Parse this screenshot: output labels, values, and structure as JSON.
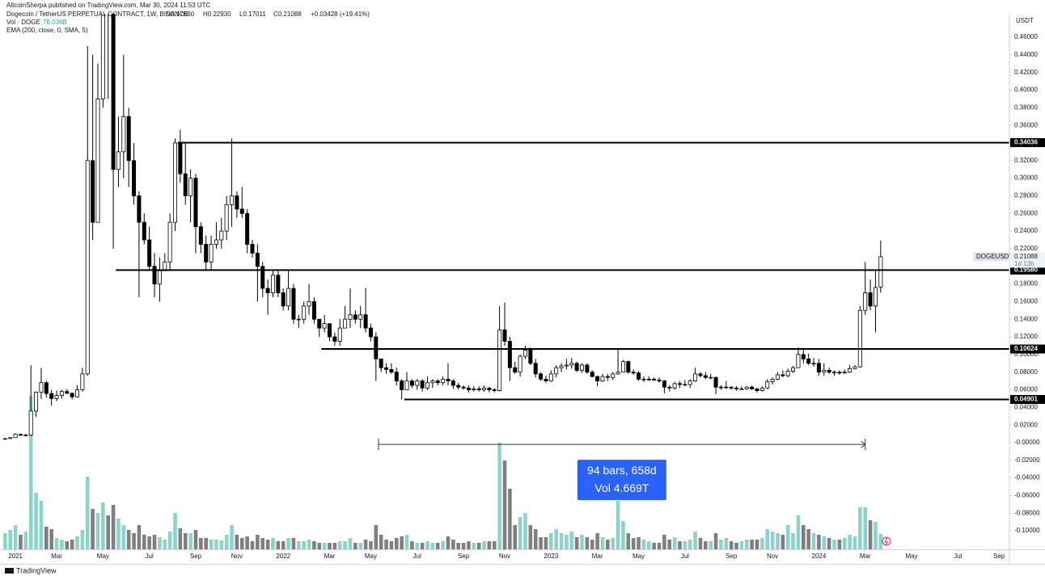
{
  "header": {
    "publisher": "AltcoinSherpa published on TradingView.com, Mar 30, 2024 11:53 UTC",
    "symbol": "Dogecoin / TetherUS PERPETUAL CONTRACT, 1W, BINANCE",
    "ohlc": [
      "O0.17660",
      "H0.22930",
      "L0.17011",
      "C0.21088",
      "+0.03428 (+19.41%)"
    ],
    "volume": "Vol · DOGE",
    "volume_value": "76.036B",
    "ema": "EMA (200, close, 0, SMA, 5)"
  },
  "chart_data": {
    "type": "candlestick",
    "currency": "USDT",
    "up_color": "#ffffff",
    "down_color": "#000000",
    "grid": false,
    "candles": [
      [
        0.0045,
        0.0049,
        0.0044,
        0.0046
      ],
      [
        0.0046,
        0.0058,
        0.0044,
        0.0057
      ],
      [
        0.0057,
        0.0105,
        0.0053,
        0.0095
      ],
      [
        0.0095,
        0.0098,
        0.0078,
        0.0085
      ],
      [
        0.0085,
        0.0099,
        0.0072,
        0.0086
      ],
      [
        0.0086,
        0.0876,
        0.0076,
        0.0358
      ],
      [
        0.0358,
        0.058,
        0.0291,
        0.0572
      ],
      [
        0.0572,
        0.0847,
        0.0495,
        0.0681
      ],
      [
        0.0681,
        0.07,
        0.051,
        0.0557
      ],
      [
        0.0557,
        0.0599,
        0.042,
        0.05
      ],
      [
        0.05,
        0.059,
        0.047,
        0.0535
      ],
      [
        0.0535,
        0.06,
        0.05,
        0.058
      ],
      [
        0.058,
        0.061,
        0.055,
        0.056
      ],
      [
        0.056,
        0.057,
        0.049,
        0.052
      ],
      [
        0.052,
        0.065,
        0.051,
        0.06
      ],
      [
        0.06,
        0.085,
        0.058,
        0.078
      ],
      [
        0.078,
        0.45,
        0.076,
        0.32
      ],
      [
        0.32,
        0.44,
        0.23,
        0.25
      ],
      [
        0.25,
        0.43,
        0.25,
        0.39
      ],
      [
        0.39,
        0.74,
        0.38,
        0.51
      ],
      [
        0.51,
        0.56,
        0.39,
        0.49
      ],
      [
        0.49,
        0.51,
        0.22,
        0.31
      ],
      [
        0.31,
        0.37,
        0.29,
        0.33
      ],
      [
        0.33,
        0.44,
        0.3,
        0.37
      ],
      [
        0.37,
        0.38,
        0.29,
        0.32
      ],
      [
        0.32,
        0.34,
        0.27,
        0.28
      ],
      [
        0.28,
        0.285,
        0.165,
        0.25
      ],
      [
        0.25,
        0.26,
        0.225,
        0.23
      ],
      [
        0.23,
        0.245,
        0.195,
        0.2
      ],
      [
        0.2,
        0.215,
        0.165,
        0.18
      ],
      [
        0.18,
        0.21,
        0.16,
        0.195
      ],
      [
        0.195,
        0.215,
        0.195,
        0.205
      ],
      [
        0.205,
        0.26,
        0.195,
        0.25
      ],
      [
        0.25,
        0.345,
        0.24,
        0.34
      ],
      [
        0.34,
        0.355,
        0.295,
        0.305
      ],
      [
        0.305,
        0.34,
        0.27,
        0.28
      ],
      [
        0.28,
        0.31,
        0.25,
        0.3
      ],
      [
        0.3,
        0.305,
        0.215,
        0.245
      ],
      [
        0.245,
        0.25,
        0.215,
        0.225
      ],
      [
        0.225,
        0.235,
        0.195,
        0.205
      ],
      [
        0.205,
        0.235,
        0.195,
        0.225
      ],
      [
        0.225,
        0.25,
        0.22,
        0.23
      ],
      [
        0.23,
        0.255,
        0.22,
        0.24
      ],
      [
        0.24,
        0.28,
        0.23,
        0.27
      ],
      [
        0.27,
        0.345,
        0.245,
        0.28
      ],
      [
        0.28,
        0.285,
        0.255,
        0.265
      ],
      [
        0.265,
        0.29,
        0.255,
        0.26
      ],
      [
        0.26,
        0.265,
        0.215,
        0.225
      ],
      [
        0.225,
        0.23,
        0.21,
        0.215
      ],
      [
        0.215,
        0.225,
        0.16,
        0.2
      ],
      [
        0.2,
        0.205,
        0.165,
        0.175
      ],
      [
        0.175,
        0.185,
        0.145,
        0.17
      ],
      [
        0.17,
        0.195,
        0.165,
        0.19
      ],
      [
        0.19,
        0.195,
        0.165,
        0.17
      ],
      [
        0.17,
        0.175,
        0.15,
        0.155
      ],
      [
        0.155,
        0.195,
        0.15,
        0.175
      ],
      [
        0.175,
        0.18,
        0.135,
        0.14
      ],
      [
        0.14,
        0.145,
        0.13,
        0.14
      ],
      [
        0.14,
        0.16,
        0.135,
        0.155
      ],
      [
        0.155,
        0.18,
        0.145,
        0.16
      ],
      [
        0.16,
        0.165,
        0.135,
        0.14
      ],
      [
        0.14,
        0.14,
        0.12,
        0.13
      ],
      [
        0.13,
        0.145,
        0.125,
        0.135
      ],
      [
        0.135,
        0.135,
        0.115,
        0.12
      ],
      [
        0.12,
        0.125,
        0.11,
        0.115
      ],
      [
        0.115,
        0.14,
        0.11,
        0.13
      ],
      [
        0.13,
        0.155,
        0.13,
        0.14
      ],
      [
        0.14,
        0.175,
        0.13,
        0.145
      ],
      [
        0.145,
        0.15,
        0.135,
        0.14
      ],
      [
        0.14,
        0.155,
        0.13,
        0.145
      ],
      [
        0.145,
        0.175,
        0.125,
        0.13
      ],
      [
        0.13,
        0.135,
        0.115,
        0.12
      ],
      [
        0.12,
        0.125,
        0.07,
        0.095
      ],
      [
        0.095,
        0.095,
        0.08,
        0.085
      ],
      [
        0.085,
        0.09,
        0.078,
        0.083
      ],
      [
        0.083,
        0.09,
        0.078,
        0.08
      ],
      [
        0.08,
        0.085,
        0.065,
        0.07
      ],
      [
        0.07,
        0.072,
        0.049,
        0.06
      ],
      [
        0.06,
        0.08,
        0.06,
        0.07
      ],
      [
        0.07,
        0.072,
        0.062,
        0.065
      ],
      [
        0.065,
        0.072,
        0.06,
        0.07
      ],
      [
        0.07,
        0.072,
        0.058,
        0.062
      ],
      [
        0.062,
        0.075,
        0.06,
        0.068
      ],
      [
        0.068,
        0.072,
        0.062,
        0.07
      ],
      [
        0.07,
        0.072,
        0.065,
        0.068
      ],
      [
        0.068,
        0.075,
        0.065,
        0.072
      ],
      [
        0.072,
        0.09,
        0.065,
        0.07
      ],
      [
        0.07,
        0.072,
        0.061,
        0.065
      ],
      [
        0.065,
        0.068,
        0.06,
        0.063
      ],
      [
        0.063,
        0.065,
        0.06,
        0.062
      ],
      [
        0.062,
        0.065,
        0.057,
        0.06
      ],
      [
        0.06,
        0.064,
        0.058,
        0.061
      ],
      [
        0.061,
        0.064,
        0.058,
        0.06
      ],
      [
        0.06,
        0.065,
        0.058,
        0.062
      ],
      [
        0.062,
        0.063,
        0.057,
        0.06
      ],
      [
        0.06,
        0.062,
        0.057,
        0.059
      ],
      [
        0.059,
        0.155,
        0.058,
        0.128
      ],
      [
        0.128,
        0.159,
        0.11,
        0.115
      ],
      [
        0.115,
        0.12,
        0.07,
        0.085
      ],
      [
        0.085,
        0.092,
        0.078,
        0.08
      ],
      [
        0.08,
        0.1,
        0.075,
        0.098
      ],
      [
        0.098,
        0.11,
        0.095,
        0.105
      ],
      [
        0.105,
        0.108,
        0.088,
        0.09
      ],
      [
        0.09,
        0.095,
        0.074,
        0.078
      ],
      [
        0.078,
        0.08,
        0.07,
        0.072
      ],
      [
        0.072,
        0.076,
        0.068,
        0.07
      ],
      [
        0.07,
        0.082,
        0.069,
        0.078
      ],
      [
        0.078,
        0.088,
        0.074,
        0.085
      ],
      [
        0.085,
        0.09,
        0.08,
        0.087
      ],
      [
        0.087,
        0.095,
        0.083,
        0.088
      ],
      [
        0.088,
        0.096,
        0.084,
        0.09
      ],
      [
        0.09,
        0.092,
        0.08,
        0.082
      ],
      [
        0.082,
        0.09,
        0.079,
        0.088
      ],
      [
        0.088,
        0.09,
        0.078,
        0.08
      ],
      [
        0.08,
        0.082,
        0.074,
        0.075
      ],
      [
        0.075,
        0.076,
        0.064,
        0.07
      ],
      [
        0.07,
        0.078,
        0.069,
        0.075
      ],
      [
        0.075,
        0.078,
        0.07,
        0.074
      ],
      [
        0.074,
        0.08,
        0.071,
        0.078
      ],
      [
        0.078,
        0.106,
        0.077,
        0.08
      ],
      [
        0.08,
        0.094,
        0.08,
        0.092
      ],
      [
        0.092,
        0.093,
        0.078,
        0.08
      ],
      [
        0.08,
        0.083,
        0.077,
        0.079
      ],
      [
        0.079,
        0.081,
        0.07,
        0.072
      ],
      [
        0.072,
        0.075,
        0.069,
        0.072
      ],
      [
        0.072,
        0.075,
        0.07,
        0.072
      ],
      [
        0.072,
        0.074,
        0.07,
        0.071
      ],
      [
        0.071,
        0.074,
        0.068,
        0.07
      ],
      [
        0.07,
        0.071,
        0.056,
        0.063
      ],
      [
        0.063,
        0.065,
        0.058,
        0.062
      ],
      [
        0.062,
        0.069,
        0.06,
        0.067
      ],
      [
        0.067,
        0.07,
        0.062,
        0.066
      ],
      [
        0.066,
        0.071,
        0.064,
        0.066
      ],
      [
        0.066,
        0.072,
        0.062,
        0.07
      ],
      [
        0.07,
        0.085,
        0.069,
        0.078
      ],
      [
        0.078,
        0.08,
        0.074,
        0.076
      ],
      [
        0.076,
        0.08,
        0.072,
        0.074
      ],
      [
        0.074,
        0.078,
        0.072,
        0.074
      ],
      [
        0.074,
        0.075,
        0.055,
        0.063
      ],
      [
        0.063,
        0.065,
        0.06,
        0.063
      ],
      [
        0.063,
        0.07,
        0.061,
        0.063
      ],
      [
        0.063,
        0.064,
        0.06,
        0.062
      ],
      [
        0.062,
        0.064,
        0.059,
        0.061
      ],
      [
        0.061,
        0.064,
        0.06,
        0.061
      ],
      [
        0.061,
        0.064,
        0.06,
        0.063
      ],
      [
        0.063,
        0.065,
        0.06,
        0.061
      ],
      [
        0.061,
        0.062,
        0.057,
        0.059
      ],
      [
        0.059,
        0.064,
        0.058,
        0.062
      ],
      [
        0.062,
        0.072,
        0.061,
        0.069
      ],
      [
        0.069,
        0.074,
        0.066,
        0.072
      ],
      [
        0.072,
        0.08,
        0.071,
        0.077
      ],
      [
        0.077,
        0.082,
        0.074,
        0.076
      ],
      [
        0.076,
        0.084,
        0.074,
        0.081
      ],
      [
        0.081,
        0.087,
        0.079,
        0.085
      ],
      [
        0.085,
        0.108,
        0.085,
        0.1
      ],
      [
        0.1,
        0.106,
        0.09,
        0.095
      ],
      [
        0.095,
        0.101,
        0.088,
        0.09
      ],
      [
        0.09,
        0.096,
        0.086,
        0.09
      ],
      [
        0.09,
        0.095,
        0.076,
        0.08
      ],
      [
        0.08,
        0.09,
        0.076,
        0.082
      ],
      [
        0.082,
        0.085,
        0.078,
        0.08
      ],
      [
        0.08,
        0.082,
        0.076,
        0.08
      ],
      [
        0.08,
        0.082,
        0.077,
        0.079
      ],
      [
        0.079,
        0.083,
        0.078,
        0.08
      ],
      [
        0.08,
        0.088,
        0.079,
        0.084
      ],
      [
        0.084,
        0.088,
        0.083,
        0.086
      ],
      [
        0.086,
        0.155,
        0.085,
        0.15
      ],
      [
        0.15,
        0.205,
        0.145,
        0.17
      ],
      [
        0.17,
        0.185,
        0.15,
        0.155
      ],
      [
        0.155,
        0.195,
        0.125,
        0.176
      ],
      [
        0.1766,
        0.2293,
        0.17011,
        0.21088
      ]
    ],
    "volume": {
      "up_color": "#8dd3cb",
      "down_color": "#7f7f7f",
      "values": [
        80,
        96,
        120,
        72,
        88,
        760,
        280,
        240,
        112,
        100,
        56,
        48,
        40,
        48,
        64,
        96,
        360,
        200,
        180,
        232,
        168,
        220,
        152,
        120,
        96,
        80,
        120,
        72,
        64,
        72,
        60,
        48,
        88,
        180,
        104,
        80,
        80,
        96,
        56,
        56,
        48,
        48,
        44,
        72,
        120,
        72,
        56,
        64,
        40,
        72,
        56,
        48,
        56,
        40,
        40,
        56,
        56,
        40,
        40,
        48,
        40,
        32,
        32,
        32,
        32,
        40,
        40,
        56,
        32,
        32,
        48,
        40,
        120,
        72,
        48,
        40,
        56,
        64,
        72,
        40,
        32,
        32,
        40,
        32,
        32,
        40,
        64,
        48,
        32,
        32,
        40,
        32,
        32,
        40,
        40,
        40,
        528,
        440,
        300,
        120,
        160,
        180,
        120,
        100,
        60,
        60,
        80,
        100,
        80,
        72,
        88,
        60,
        72,
        60,
        48,
        80,
        60,
        48,
        56,
        240,
        140,
        80,
        56,
        60,
        48,
        40,
        32,
        32,
        72,
        48,
        60,
        40,
        40,
        48,
        88,
        56,
        40,
        40,
        80,
        48,
        56,
        40,
        32,
        40,
        48,
        48,
        48,
        56,
        100,
        88,
        80,
        72,
        120,
        80,
        168,
        120,
        100,
        80,
        72,
        64,
        56,
        48,
        48,
        56,
        72,
        64,
        208,
        208,
        144,
        136,
        76.036
      ]
    },
    "xlim": [
      -1,
      195
    ],
    "xticks": [
      {
        "value": 2,
        "label": "2021"
      },
      {
        "value": 10,
        "label": "Mar"
      },
      {
        "value": 19,
        "label": "May"
      },
      {
        "value": 28,
        "label": "Jul"
      },
      {
        "value": 37,
        "label": "Sep"
      },
      {
        "value": 45,
        "label": "Nov"
      },
      {
        "value": 54,
        "label": "2022"
      },
      {
        "value": 63,
        "label": "Mar"
      },
      {
        "value": 71,
        "label": "May"
      },
      {
        "value": 80,
        "label": "Jul"
      },
      {
        "value": 89,
        "label": "Sep"
      },
      {
        "value": 97,
        "label": "Nov"
      },
      {
        "value": 106,
        "label": "2023"
      },
      {
        "value": 115,
        "label": "Mar"
      },
      {
        "value": 123,
        "label": "May"
      },
      {
        "value": 132,
        "label": "Jul"
      },
      {
        "value": 141,
        "label": "Sep"
      },
      {
        "value": 149,
        "label": "Nov"
      },
      {
        "value": 158,
        "label": "2024"
      },
      {
        "value": 167,
        "label": "Mar"
      },
      {
        "value": 176,
        "label": "May"
      },
      {
        "value": 185,
        "label": "Jul"
      },
      {
        "value": 193,
        "label": "Sep"
      }
    ],
    "ylim": [
      -0.121,
      0.4866
    ],
    "yticks": [
      {
        "value": 0.46,
        "label": "0.46000"
      },
      {
        "value": 0.44,
        "label": "0.44000"
      },
      {
        "value": 0.42,
        "label": "0.42000"
      },
      {
        "value": 0.4,
        "label": "0.40000"
      },
      {
        "value": 0.38,
        "label": "0.38000"
      },
      {
        "value": 0.36,
        "label": "0.36000"
      },
      {
        "value": 0.34,
        "label": "0.34000"
      },
      {
        "value": 0.32,
        "label": "0.32000"
      },
      {
        "value": 0.3,
        "label": "0.30000"
      },
      {
        "value": 0.28,
        "label": "0.28000"
      },
      {
        "value": 0.26,
        "label": "0.26000"
      },
      {
        "value": 0.24,
        "label": "0.24000"
      },
      {
        "value": 0.22,
        "label": "0.22000"
      },
      {
        "value": 0.2,
        "label": "0.20000"
      },
      {
        "value": 0.18,
        "label": "0.18000"
      },
      {
        "value": 0.16,
        "label": "0.16000"
      },
      {
        "value": 0.14,
        "label": "0.14000"
      },
      {
        "value": 0.12,
        "label": "0.12000"
      },
      {
        "value": 0.1,
        "label": "0.10000"
      },
      {
        "value": 0.08,
        "label": "0.08000"
      },
      {
        "value": 0.06,
        "label": "0.06000"
      },
      {
        "value": 0.04,
        "label": "0.04000"
      },
      {
        "value": 0.02,
        "label": "0.02000"
      },
      {
        "value": 0,
        "label": "-0.00000"
      },
      {
        "value": -0.02,
        "label": "-0.02000"
      },
      {
        "value": -0.04,
        "label": "-0.04000"
      },
      {
        "value": -0.06,
        "label": "-0.06000"
      },
      {
        "value": -0.08,
        "label": "-0.08000"
      },
      {
        "value": -0.1,
        "label": "-0.10000"
      }
    ],
    "levels": [
      {
        "value": 0.34036,
        "label": "0.34036",
        "start": 33.5
      },
      {
        "value": 0.1958,
        "label": "0.19580",
        "start": 21.5
      },
      {
        "value": 0.10624,
        "label": "0.10624",
        "start": 61.4
      },
      {
        "value": 0.04901,
        "label": "0.04901",
        "start": 77.5
      }
    ],
    "measure": {
      "start": 72.5,
      "end": 167,
      "at": -0.002,
      "lines": [
        "94 bars, 658d",
        "Vol 4.669T"
      ]
    },
    "last_price": {
      "symbol": "DOGEUSDT.P",
      "countdown": "1d 13h"
    }
  },
  "footer": "TradingView"
}
